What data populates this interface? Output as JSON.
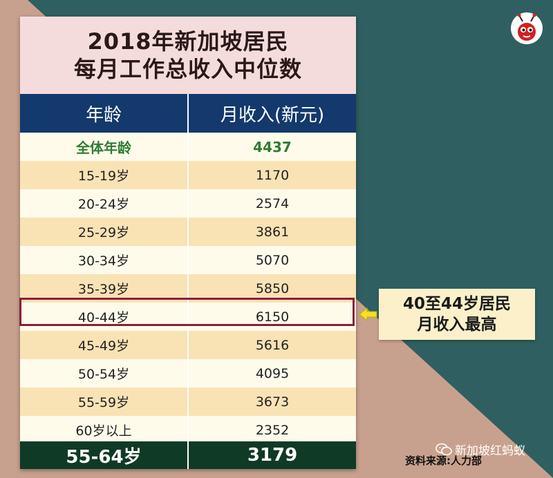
{
  "title": {
    "line1": "2018年新加坡居民",
    "line2": "每月工作总收入中位数"
  },
  "header": {
    "col1": "年龄",
    "col2": "月收入(新元)"
  },
  "rows": [
    {
      "age": "全体年龄",
      "income": "4437"
    },
    {
      "age": "15-19岁",
      "income": "1170"
    },
    {
      "age": "20-24岁",
      "income": "2574"
    },
    {
      "age": "25-29岁",
      "income": "3861"
    },
    {
      "age": "30-34岁",
      "income": "5070"
    },
    {
      "age": "35-39岁",
      "income": "5850"
    },
    {
      "age": "40-44岁",
      "income": "6150"
    },
    {
      "age": "45-49岁",
      "income": "5616"
    },
    {
      "age": "50-54岁",
      "income": "4095"
    },
    {
      "age": "55-59岁",
      "income": "3673"
    },
    {
      "age": "60岁以上",
      "income": "2352"
    }
  ],
  "footer": {
    "age": "55-64岁",
    "income": "3179"
  },
  "callout": {
    "line1": "40至44岁居民",
    "line2": "月收入最高"
  },
  "watermark": "新加坡红蚂蚁",
  "source": "资料来源:人力部",
  "icons": [
    "ant-logo-icon",
    "arrow-left-icon",
    "wechat-icon"
  ],
  "colors": {
    "background_teal": "#2f5f60",
    "background_tan": "#c8a18e",
    "header_navy": "#13396d",
    "footer_green": "#0f3a26",
    "highlight_border": "#8a1e3a",
    "first_row_text": "#2e7d32"
  }
}
